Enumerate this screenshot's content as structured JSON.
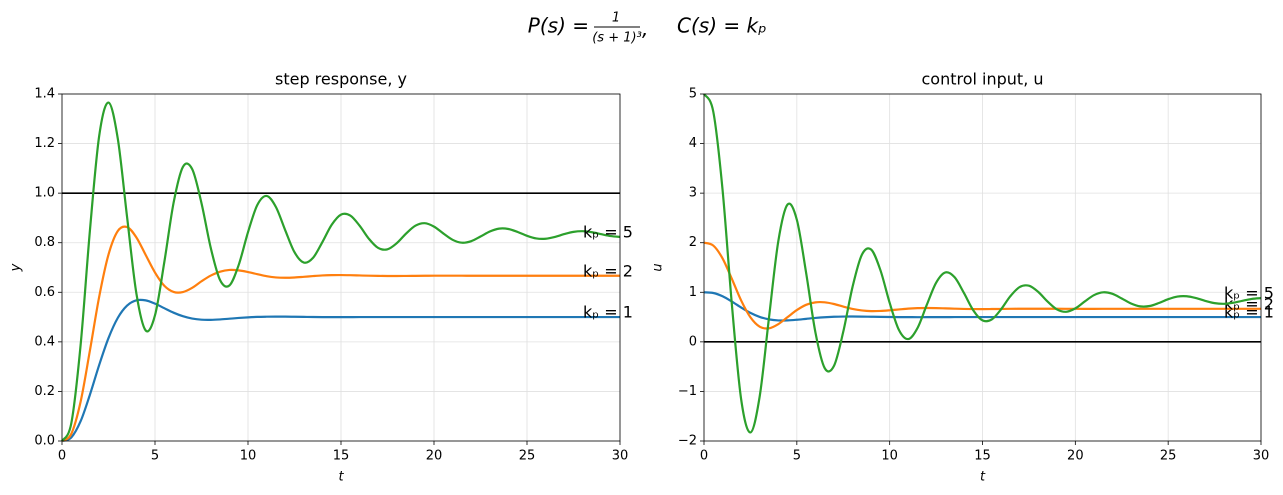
{
  "title": {
    "lhs": "P(s) =",
    "num": "1",
    "den": "(s + 1)³",
    "sep": ",",
    "rhs": "C(s) = kₚ"
  },
  "chart_data": [
    {
      "type": "line",
      "title": "step response, y",
      "xlabel": "t",
      "ylabel": "y",
      "x": [
        0,
        0.5,
        1,
        1.5,
        2,
        2.5,
        3,
        3.5,
        4,
        4.5,
        5,
        5.5,
        6,
        6.5,
        7,
        7.5,
        8,
        8.5,
        9,
        9.5,
        10,
        10.5,
        11,
        11.5,
        12,
        12.5,
        13,
        13.5,
        14,
        14.5,
        15,
        15.5,
        16,
        16.5,
        17,
        17.5,
        18,
        18.5,
        19,
        19.5,
        20,
        20.5,
        21,
        21.5,
        22,
        22.5,
        23,
        23.5,
        24,
        24.5,
        25,
        25.5,
        26,
        26.5,
        27,
        27.5,
        28,
        28.5,
        29,
        29.5,
        30
      ],
      "xlim": [
        0,
        30
      ],
      "xticks": [
        0,
        5,
        10,
        15,
        20,
        25,
        30
      ],
      "ylim": [
        0,
        1.4
      ],
      "yticks": [
        {
          "value": 0,
          "label": "0.0"
        },
        0.2,
        0.4,
        0.6,
        0.8,
        {
          "value": 1,
          "label": "1.0"
        },
        1.2,
        1.4
      ],
      "grid": true,
      "hlines": [
        1
      ],
      "hline_color": "#000000",
      "series": [
        {
          "name": "kₚ = 1",
          "color": "#1f77b4",
          "values": [
            0,
            0.0143,
            0.0797,
            0.1867,
            0.3069,
            0.4153,
            0.4967,
            0.5463,
            0.5675,
            0.5673,
            0.5542,
            0.5358,
            0.5177,
            0.5034,
            0.4939,
            0.4894,
            0.4888,
            0.4905,
            0.4934,
            0.4964,
            0.4989,
            0.5007,
            0.5015,
            0.5019,
            0.5017,
            0.5012,
            0.5007,
            0.5002,
            0.4999,
            0.4998,
            0.4998,
            0.4999,
            0.5,
            0.5,
            0.5,
            0.5,
            0.5,
            0.5,
            0.5,
            0.5,
            0.5,
            0.5,
            0.5,
            0.5,
            0.5,
            0.5,
            0.5,
            0.5,
            0.5,
            0.5,
            0.5,
            0.5,
            0.5,
            0.5,
            0.5,
            0.5,
            0.5,
            0.5,
            0.5,
            0.5,
            0.5
          ]
        },
        {
          "name": "kₚ = 2",
          "color": "#ff7f0e",
          "values": [
            0,
            0.0288,
            0.1584,
            0.3647,
            0.5823,
            0.7522,
            0.8473,
            0.8632,
            0.8212,
            0.7505,
            0.6797,
            0.6264,
            0.6015,
            0.601,
            0.6181,
            0.6445,
            0.6675,
            0.6833,
            0.6901,
            0.6883,
            0.6817,
            0.6732,
            0.6648,
            0.6599,
            0.6586,
            0.6597,
            0.6624,
            0.6654,
            0.6679,
            0.6692,
            0.6695,
            0.6689,
            0.6679,
            0.6669,
            0.6662,
            0.6658,
            0.6658,
            0.666,
            0.6663,
            0.6666,
            0.6669,
            0.667,
            0.667,
            0.6669,
            0.6668,
            0.6667,
            0.6667,
            0.6667,
            0.6667,
            0.6667,
            0.6667,
            0.6667,
            0.6667,
            0.6667,
            0.6667,
            0.6667,
            0.6667,
            0.6667,
            0.6667,
            0.6667,
            0.6667
          ]
        },
        {
          "name": "kₚ = 5",
          "color": "#2ca02c",
          "values": [
            0,
            0.0714,
            0.3867,
            0.8483,
            1.2312,
            1.3655,
            1.2195,
            0.9028,
            0.5948,
            0.4458,
            0.5073,
            0.7213,
            0.9614,
            1.1058,
            1.097,
            0.9594,
            0.7784,
            0.6489,
            0.6275,
            0.7103,
            0.8425,
            0.9521,
            0.9887,
            0.944,
            0.8507,
            0.7616,
            0.7198,
            0.7394,
            0.8027,
            0.8724,
            0.9135,
            0.9096,
            0.8687,
            0.8159,
            0.7788,
            0.7735,
            0.7984,
            0.8371,
            0.8687,
            0.8787,
            0.865,
            0.8375,
            0.8117,
            0.8,
            0.8063,
            0.825,
            0.8452,
            0.8569,
            0.8554,
            0.8432,
            0.8278,
            0.8172,
            0.816,
            0.8234,
            0.8347,
            0.8438,
            0.8465,
            0.8423,
            0.8343,
            0.8268,
            0.8236
          ]
        }
      ]
    },
    {
      "type": "line",
      "title": "control input, u",
      "xlabel": "t",
      "ylabel": "u",
      "x": [
        0,
        0.5,
        1,
        1.5,
        2,
        2.5,
        3,
        3.5,
        4,
        4.5,
        5,
        5.5,
        6,
        6.5,
        7,
        7.5,
        8,
        8.5,
        9,
        9.5,
        10,
        10.5,
        11,
        11.5,
        12,
        12.5,
        13,
        13.5,
        14,
        14.5,
        15,
        15.5,
        16,
        16.5,
        17,
        17.5,
        18,
        18.5,
        19,
        19.5,
        20,
        20.5,
        21,
        21.5,
        22,
        22.5,
        23,
        23.5,
        24,
        24.5,
        25,
        25.5,
        26,
        26.5,
        27,
        27.5,
        28,
        28.5,
        29,
        29.5,
        30
      ],
      "xlim": [
        0,
        30
      ],
      "xticks": [
        0,
        5,
        10,
        15,
        20,
        25,
        30
      ],
      "ylim": [
        -2,
        5
      ],
      "yticks": [
        {
          "value": -2,
          "label": "−2"
        },
        {
          "value": -1,
          "label": "−1"
        },
        0,
        1,
        2,
        3,
        4,
        5
      ],
      "grid": true,
      "hlines": [
        0
      ],
      "hline_color": "#000000",
      "series": [
        {
          "name": "kₚ = 1",
          "color": "#1f77b4",
          "values": [
            1,
            0.9857,
            0.9203,
            0.8133,
            0.6931,
            0.5847,
            0.5033,
            0.4537,
            0.4325,
            0.4327,
            0.4458,
            0.4642,
            0.4823,
            0.4966,
            0.5061,
            0.5106,
            0.5112,
            0.5095,
            0.5066,
            0.5036,
            0.5011,
            0.4993,
            0.4985,
            0.4981,
            0.4983,
            0.4988,
            0.4993,
            0.4998,
            0.5001,
            0.5002,
            0.5002,
            0.5001,
            0.5,
            0.5,
            0.5,
            0.5,
            0.5,
            0.5,
            0.5,
            0.5,
            0.5,
            0.5,
            0.5,
            0.5,
            0.5,
            0.5,
            0.5,
            0.5,
            0.5,
            0.5,
            0.5,
            0.5,
            0.5,
            0.5,
            0.5,
            0.5,
            0.5,
            0.5,
            0.5,
            0.5,
            0.5
          ]
        },
        {
          "name": "kₚ = 2",
          "color": "#ff7f0e",
          "values": [
            2,
            1.9424,
            1.6832,
            1.2706,
            0.8354,
            0.4956,
            0.3054,
            0.2736,
            0.3576,
            0.499,
            0.6406,
            0.7472,
            0.797,
            0.798,
            0.7638,
            0.711,
            0.665,
            0.6334,
            0.6198,
            0.6234,
            0.6366,
            0.6536,
            0.6704,
            0.6802,
            0.6828,
            0.6806,
            0.6752,
            0.6692,
            0.6642,
            0.6616,
            0.661,
            0.6622,
            0.6642,
            0.6662,
            0.6676,
            0.6684,
            0.6684,
            0.668,
            0.6674,
            0.6668,
            0.6662,
            0.666,
            0.666,
            0.6662,
            0.6664,
            0.6666,
            0.6666,
            0.6666,
            0.6666,
            0.6666,
            0.6666,
            0.6666,
            0.6666,
            0.6666,
            0.6666,
            0.6666,
            0.6666,
            0.6666,
            0.6666,
            0.6666,
            0.6666
          ]
        },
        {
          "name": "kₚ = 5",
          "color": "#2ca02c",
          "values": [
            5,
            4.643,
            3.0665,
            0.7585,
            -1.156,
            -1.8275,
            -1.0975,
            0.486,
            2.026,
            2.771,
            2.4635,
            1.3935,
            0.193,
            -0.529,
            -0.485,
            0.203,
            1.108,
            1.7555,
            1.8625,
            1.4485,
            0.7875,
            0.2395,
            0.0565,
            0.28,
            0.7465,
            1.192,
            1.401,
            1.303,
            0.9865,
            0.638,
            0.4325,
            0.452,
            0.6565,
            0.9205,
            1.106,
            1.1325,
            1.008,
            0.8145,
            0.6565,
            0.6065,
            0.675,
            0.8125,
            0.9415,
            1.0,
            0.9685,
            0.875,
            0.774,
            0.7155,
            0.723,
            0.784,
            0.861,
            0.914,
            0.92,
            0.883,
            0.8265,
            0.781,
            0.7675,
            0.7885,
            0.8285,
            0.866,
            0.882
          ]
        }
      ]
    }
  ]
}
